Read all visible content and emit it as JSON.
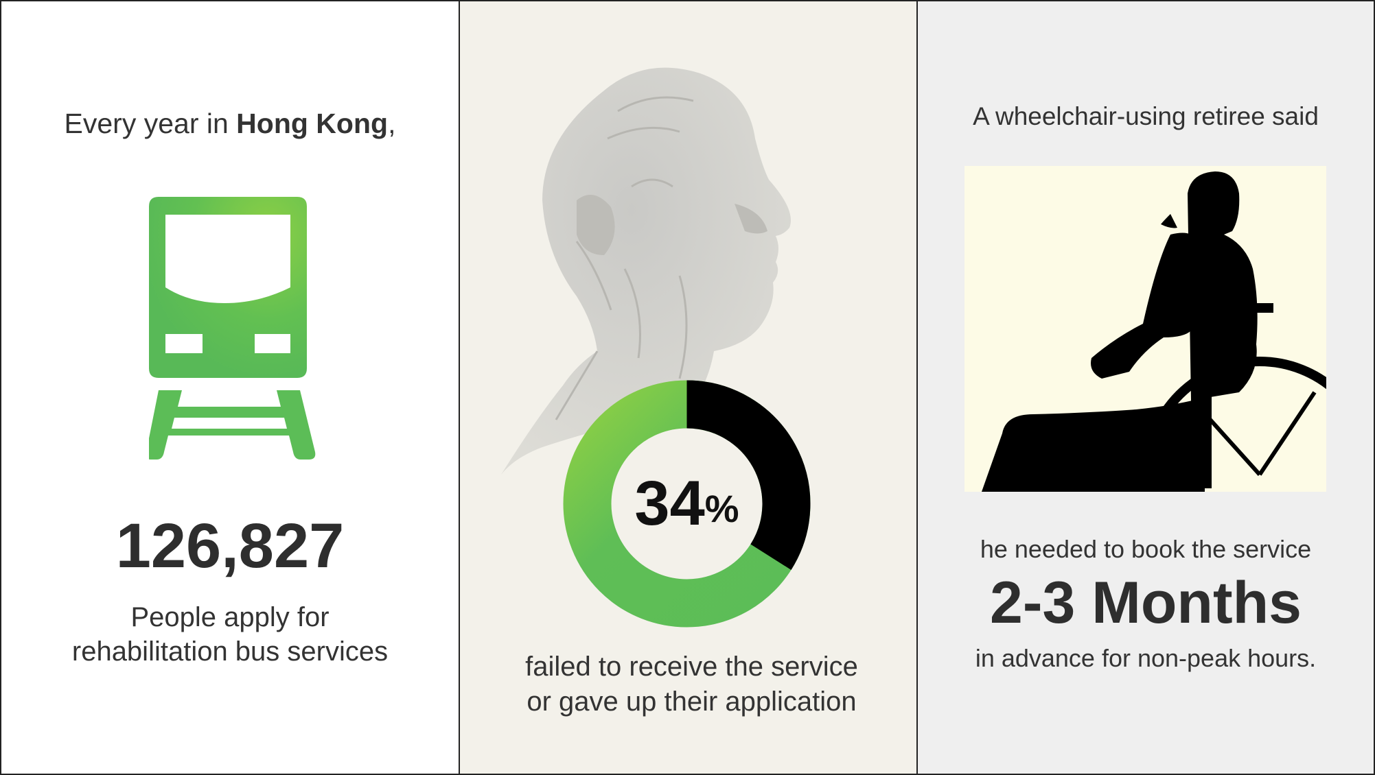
{
  "panel1": {
    "intro_prefix": "Every year in ",
    "intro_place": "Hong Kong",
    "intro_suffix": ",",
    "count": "126,827",
    "caption_line1": "People apply for",
    "caption_line2": "rehabilitation bus services",
    "icon": "train-icon",
    "accent_color": "#5cbd57"
  },
  "panel2": {
    "percent_value": 34,
    "percent_number": "34",
    "percent_sign": "%",
    "caption_line1": "failed to receive the service",
    "caption_line2": "or gave up their application",
    "image": "elderly-man-portrait",
    "donut_colors": {
      "failed": "#000000",
      "other": "#5cbd57"
    }
  },
  "panel3": {
    "intro": "A wheelchair-using retiree said",
    "image": "wheelchair-silhouette",
    "line1": "he needed to book the service",
    "highlight": "2-3 Months",
    "line2": "in advance for non-peak hours."
  }
}
